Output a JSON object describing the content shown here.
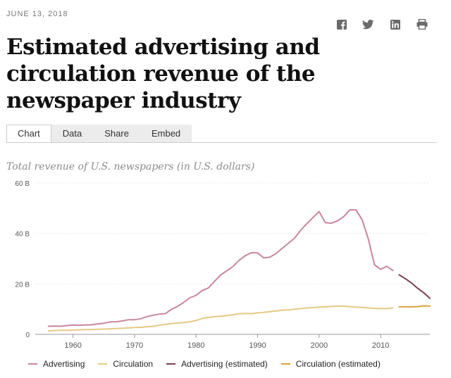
{
  "header": {
    "date": "JUNE 13, 2018"
  },
  "share_icons": [
    "facebook-icon",
    "twitter-icon",
    "linkedin-icon",
    "print-icon"
  ],
  "title": "Estimated advertising and circulation revenue of the newspaper industry",
  "tabs": [
    {
      "label": "Chart",
      "active": true
    },
    {
      "label": "Data",
      "active": false
    },
    {
      "label": "Share",
      "active": false
    },
    {
      "label": "Embed",
      "active": false
    }
  ],
  "subtitle": "Total revenue of U.S. newspapers (in U.S. dollars)",
  "chart_data": {
    "type": "line",
    "title": "",
    "xlabel": "",
    "ylabel": "",
    "xlim": [
      1955,
      2018
    ],
    "ylim": [
      0,
      60
    ],
    "y_ticks": [
      {
        "value": 0,
        "label": "0"
      },
      {
        "value": 20,
        "label": "20 B"
      },
      {
        "value": 40,
        "label": "40 B"
      },
      {
        "value": 60,
        "label": "60 B"
      }
    ],
    "x_ticks": [
      1960,
      1970,
      1980,
      1990,
      2000,
      2010
    ],
    "grid": "horizontal dotted",
    "legend_position": "bottom",
    "series": [
      {
        "name": "Advertising",
        "color": "#c9869a",
        "x": [
          1956,
          1957,
          1958,
          1959,
          1960,
          1961,
          1962,
          1963,
          1964,
          1965,
          1966,
          1967,
          1968,
          1969,
          1970,
          1971,
          1972,
          1973,
          1974,
          1975,
          1976,
          1977,
          1978,
          1979,
          1980,
          1981,
          1982,
          1983,
          1984,
          1985,
          1986,
          1987,
          1988,
          1989,
          1990,
          1991,
          1992,
          1993,
          1994,
          1995,
          1996,
          1997,
          1998,
          1999,
          2000,
          2001,
          2002,
          2003,
          2004,
          2005,
          2006,
          2007,
          2008,
          2009,
          2010,
          2011,
          2012
        ],
        "values": [
          3.2,
          3.3,
          3.2,
          3.5,
          3.7,
          3.6,
          3.7,
          3.8,
          4.1,
          4.4,
          4.9,
          5.0,
          5.3,
          5.8,
          5.8,
          6.2,
          7.0,
          7.6,
          8.0,
          8.2,
          9.9,
          11.1,
          12.7,
          14.5,
          15.5,
          17.4,
          18.4,
          21.0,
          23.6,
          25.2,
          26.9,
          29.4,
          31.2,
          32.4,
          32.3,
          30.3,
          30.6,
          32.0,
          34.1,
          36.1,
          38.1,
          41.3,
          43.9,
          46.3,
          48.7,
          44.3,
          44.1,
          45.0,
          46.7,
          49.4,
          49.3,
          45.4,
          37.8,
          27.6,
          25.8,
          27.0,
          25.3
        ]
      },
      {
        "name": "Circulation",
        "color": "#e6c983",
        "x": [
          1956,
          1957,
          1958,
          1959,
          1960,
          1961,
          1962,
          1963,
          1964,
          1965,
          1966,
          1967,
          1968,
          1969,
          1970,
          1971,
          1972,
          1973,
          1974,
          1975,
          1976,
          1977,
          1978,
          1979,
          1980,
          1981,
          1982,
          1983,
          1984,
          1985,
          1986,
          1987,
          1988,
          1989,
          1990,
          1991,
          1992,
          1993,
          1994,
          1995,
          1996,
          1997,
          1998,
          1999,
          2000,
          2001,
          2002,
          2003,
          2004,
          2005,
          2006,
          2007,
          2008,
          2009,
          2010,
          2011,
          2012
        ],
        "values": [
          1.4,
          1.5,
          1.6,
          1.6,
          1.7,
          1.8,
          1.9,
          1.9,
          2.0,
          2.1,
          2.2,
          2.3,
          2.4,
          2.6,
          2.7,
          2.8,
          3.0,
          3.2,
          3.6,
          4.0,
          4.2,
          4.5,
          4.7,
          5.0,
          5.5,
          6.3,
          6.7,
          7.0,
          7.2,
          7.4,
          7.8,
          8.2,
          8.3,
          8.2,
          8.5,
          8.7,
          9.0,
          9.3,
          9.6,
          9.7,
          10.0,
          10.2,
          10.5,
          10.6,
          10.8,
          10.9,
          11.1,
          11.2,
          11.2,
          11.0,
          10.8,
          10.7,
          10.5,
          10.3,
          10.2,
          10.2,
          10.5
        ]
      },
      {
        "name": "Advertising (estimated)",
        "color": "#7b3f55",
        "x": [
          2013,
          2014,
          2015,
          2016,
          2017,
          2018
        ],
        "values": [
          23.6,
          22.1,
          20.4,
          18.3,
          16.5,
          14.3
        ]
      },
      {
        "name": "Circulation (estimated)",
        "color": "#d9a43d",
        "x": [
          2013,
          2014,
          2015,
          2016,
          2017,
          2018
        ],
        "values": [
          10.9,
          10.9,
          10.9,
          11.0,
          11.3,
          11.2
        ]
      }
    ]
  }
}
